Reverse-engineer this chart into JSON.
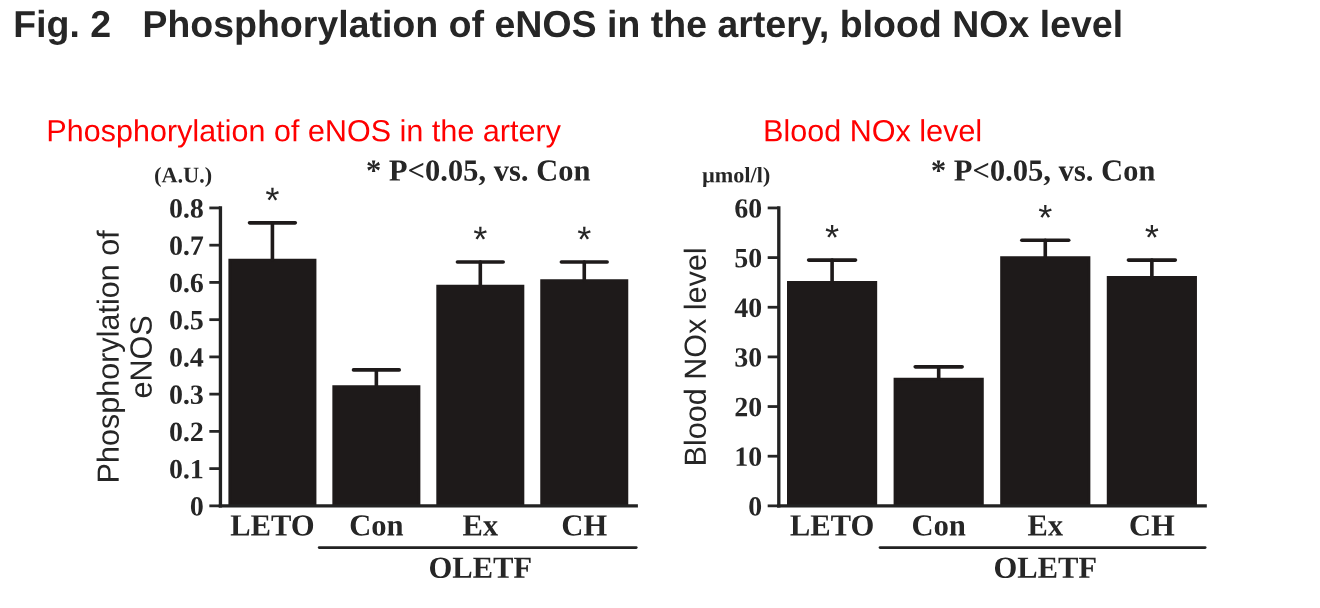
{
  "chart_data": [
    {
      "type": "bar",
      "title": "Phosphorylation of eNOS in the artery",
      "ylabel": "Phosphorylation of\neNOS",
      "categories": [
        "LETO",
        "Con",
        "Ex",
        "CH"
      ],
      "values": [
        0.66,
        0.32,
        0.59,
        0.605
      ],
      "errors": [
        [
          0.66,
          0.76
        ],
        [
          0.32,
          0.365
        ],
        [
          0.59,
          0.655
        ],
        [
          0.605,
          0.655
        ]
      ],
      "color": "#1e1a1a",
      "ylim": [
        0,
        0.8
      ],
      "yticks": [
        0,
        0.1,
        0.2,
        0.3,
        0.4,
        0.5,
        0.6,
        0.7,
        0.8
      ],
      "grid": false,
      "legend": false,
      "annotations": [
        "Fig. 2   Phosphorylation of eNOS in the artery, blood NOx level",
        "(A.U.)",
        "* P<0.05, vs. Con",
        "OLETF",
        {
          "text": "*",
          "x": "LETO",
          "y": 0.76
        },
        {
          "text": "*",
          "x": "Ex",
          "y": 0.655
        },
        {
          "text": "*",
          "x": "CH",
          "y": 0.655
        }
      ]
    },
    {
      "type": "bar",
      "title": "Blood NOx level",
      "ylabel": "Blood NOx level",
      "categories": [
        "LETO",
        "Con",
        "Ex",
        "CH"
      ],
      "values": [
        45,
        25.5,
        50,
        46
      ],
      "errors": [
        [
          45,
          49.5
        ],
        [
          25.5,
          28
        ],
        [
          50,
          53.5
        ],
        [
          46,
          49.5
        ]
      ],
      "color": "#1e1a1a",
      "ylim": [
        0,
        60
      ],
      "yticks": [
        0,
        10,
        20,
        30,
        40,
        50,
        60
      ],
      "grid": false,
      "legend": false,
      "annotations": [
        "μmol/l)",
        "* P<0.05, vs. Con",
        "OLETF",
        {
          "text": "*",
          "x": "LETO",
          "y": 49.5
        },
        {
          "text": "*",
          "x": "Ex",
          "y": 53.5
        },
        {
          "text": "*",
          "x": "CH",
          "y": 49.5
        }
      ]
    }
  ]
}
